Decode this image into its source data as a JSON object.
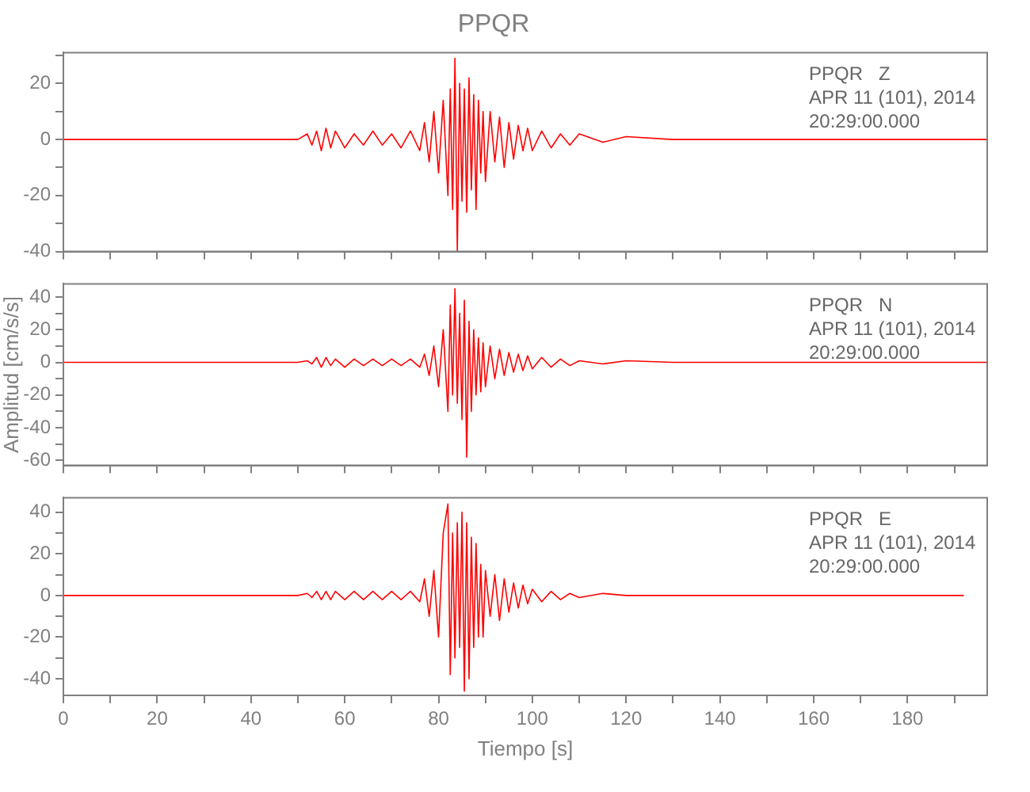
{
  "chart_data": [
    {
      "type": "line",
      "title": "PPQR",
      "annotations": [
        "PPQR   Z",
        "APR 11 (101), 2014",
        "20:29:00.000"
      ],
      "x": [
        0,
        50,
        52,
        53,
        54,
        55,
        56,
        57,
        58,
        60,
        62,
        64,
        66,
        68,
        70,
        72,
        74,
        76,
        77,
        78,
        79,
        80,
        81,
        82,
        82.5,
        83,
        83.5,
        84,
        84.5,
        85,
        85.5,
        86,
        86.5,
        87,
        87.5,
        88,
        88.5,
        89,
        89.5,
        90,
        91,
        92,
        93,
        94,
        95,
        96,
        97,
        98,
        99,
        100,
        102,
        104,
        106,
        108,
        110,
        115,
        120,
        130,
        150,
        197
      ],
      "series": [
        {
          "color": "#ff0000",
          "values": [
            0,
            0,
            2,
            -2,
            3,
            -4,
            4,
            -3,
            3,
            -3,
            2,
            -2,
            3,
            -2,
            2,
            -3,
            3,
            -4,
            6,
            -8,
            10,
            -12,
            14,
            -20,
            18,
            -25,
            29,
            -40,
            20,
            -22,
            18,
            -26,
            22,
            -18,
            16,
            -25,
            14,
            -12,
            10,
            -15,
            10,
            -8,
            8,
            -10,
            6,
            -7,
            5,
            -4,
            4,
            -4,
            3,
            -3,
            2,
            -2,
            2,
            -1,
            1,
            0,
            0,
            0
          ]
        }
      ],
      "xlim": [
        0,
        197
      ],
      "xticks": [
        0,
        {
          "value": 10,
          "label": null
        },
        20,
        {
          "value": 30,
          "label": null
        },
        40,
        {
          "value": 50,
          "label": null
        },
        60,
        {
          "value": 70,
          "label": null
        },
        80,
        {
          "value": 90,
          "label": null
        },
        100,
        {
          "value": 110,
          "label": null
        },
        120,
        {
          "value": 130,
          "label": null
        },
        140,
        {
          "value": 150,
          "label": null
        },
        160,
        {
          "value": 170,
          "label": null
        },
        180,
        {
          "value": 190,
          "label": null
        }
      ],
      "ylim": [
        -40,
        31
      ],
      "yticks": [
        -40,
        {
          "value": -30,
          "label": null
        },
        -20,
        {
          "value": -10,
          "label": null
        },
        0,
        {
          "value": 10,
          "label": null
        },
        20,
        {
          "value": 30,
          "label": null
        }
      ],
      "tick_labels": "y",
      "marker": "none",
      "line_style": "solid",
      "grid": false,
      "legend": false
    },
    {
      "type": "line",
      "ylabel": "Amplitud [cm/s/s]",
      "annotations": [
        "PPQR   N",
        "APR 11 (101), 2014",
        "20:29:00.000"
      ],
      "x": [
        0,
        50,
        52,
        53,
        54,
        55,
        56,
        57,
        58,
        60,
        62,
        64,
        66,
        68,
        70,
        72,
        74,
        76,
        77,
        78,
        79,
        80,
        81,
        82,
        82.5,
        83,
        83.5,
        84,
        84.5,
        85,
        85.5,
        86,
        86.5,
        87,
        87.5,
        88,
        88.5,
        89,
        89.5,
        90,
        91,
        92,
        93,
        94,
        95,
        96,
        97,
        98,
        99,
        100,
        102,
        104,
        106,
        108,
        110,
        115,
        120,
        130,
        150,
        197
      ],
      "series": [
        {
          "color": "#ff0000",
          "values": [
            0,
            0,
            1,
            -1,
            3,
            -3,
            3,
            -2,
            2,
            -3,
            2,
            -2,
            2,
            -2,
            2,
            -2,
            2,
            -3,
            5,
            -8,
            10,
            -15,
            20,
            -30,
            35,
            -20,
            45,
            -25,
            30,
            -35,
            38,
            -58,
            25,
            -30,
            20,
            -20,
            15,
            -18,
            12,
            -15,
            10,
            -10,
            8,
            -8,
            6,
            -6,
            5,
            -5,
            4,
            -4,
            3,
            -3,
            2,
            -2,
            1,
            -1,
            1,
            0,
            0,
            0
          ]
        }
      ],
      "xlim": [
        0,
        197
      ],
      "xticks": [
        0,
        {
          "value": 10,
          "label": null
        },
        20,
        {
          "value": 30,
          "label": null
        },
        40,
        {
          "value": 50,
          "label": null
        },
        60,
        {
          "value": 70,
          "label": null
        },
        80,
        {
          "value": 90,
          "label": null
        },
        100,
        {
          "value": 110,
          "label": null
        },
        120,
        {
          "value": 130,
          "label": null
        },
        140,
        {
          "value": 150,
          "label": null
        },
        160,
        {
          "value": 170,
          "label": null
        },
        180,
        {
          "value": 190,
          "label": null
        }
      ],
      "ylim": [
        -63,
        48
      ],
      "yticks": [
        -60,
        {
          "value": -50,
          "label": null
        },
        -40,
        {
          "value": -30,
          "label": null
        },
        -20,
        {
          "value": -10,
          "label": null
        },
        0,
        {
          "value": 10,
          "label": null
        },
        20,
        {
          "value": 30,
          "label": null
        },
        40
      ],
      "tick_labels": "y",
      "marker": "none",
      "line_style": "solid",
      "grid": false,
      "legend": false
    },
    {
      "type": "line",
      "xlabel": "Tiempo [s]",
      "annotations": [
        "PPQR   E",
        "APR 11 (101), 2014",
        "20:29:00.000"
      ],
      "x": [
        0,
        50,
        52,
        53,
        54,
        55,
        56,
        57,
        58,
        60,
        62,
        64,
        66,
        68,
        70,
        72,
        74,
        76,
        77,
        78,
        79,
        80,
        81,
        82,
        82.5,
        83,
        83.5,
        84,
        84.5,
        85,
        85.5,
        86,
        86.5,
        87,
        87.5,
        88,
        88.5,
        89,
        89.5,
        90,
        91,
        92,
        93,
        94,
        95,
        96,
        97,
        98,
        99,
        100,
        102,
        104,
        106,
        108,
        110,
        115,
        120,
        130,
        150,
        192
      ],
      "series": [
        {
          "color": "#ff0000",
          "values": [
            0,
            0,
            1,
            -1,
            2,
            -2,
            2,
            -2,
            2,
            -2,
            2,
            -2,
            2,
            -2,
            2,
            -2,
            2,
            -3,
            8,
            -10,
            12,
            -20,
            30,
            44,
            -38,
            30,
            -30,
            35,
            -25,
            40,
            -46,
            35,
            -40,
            28,
            -25,
            25,
            -20,
            15,
            -20,
            12,
            -10,
            10,
            -12,
            8,
            -8,
            6,
            -6,
            5,
            -4,
            3,
            -3,
            2,
            -2,
            1,
            -1,
            1,
            0,
            0,
            0,
            0
          ]
        }
      ],
      "xlim": [
        0,
        197
      ],
      "xticks": [
        0,
        {
          "value": 10,
          "label": null
        },
        20,
        {
          "value": 30,
          "label": null
        },
        40,
        {
          "value": 50,
          "label": null
        },
        60,
        {
          "value": 70,
          "label": null
        },
        80,
        {
          "value": 90,
          "label": null
        },
        100,
        {
          "value": 110,
          "label": null
        },
        120,
        {
          "value": 130,
          "label": null
        },
        140,
        {
          "value": 150,
          "label": null
        },
        160,
        {
          "value": 170,
          "label": null
        },
        180,
        {
          "value": 190,
          "label": null
        }
      ],
      "ylim": [
        -48,
        47
      ],
      "yticks": [
        -40,
        {
          "value": -30,
          "label": null
        },
        -20,
        {
          "value": -10,
          "label": null
        },
        0,
        {
          "value": 10,
          "label": null
        },
        20,
        {
          "value": 30,
          "label": null
        },
        40
      ],
      "marker": "none",
      "line_style": "solid",
      "grid": false,
      "legend": false
    }
  ]
}
